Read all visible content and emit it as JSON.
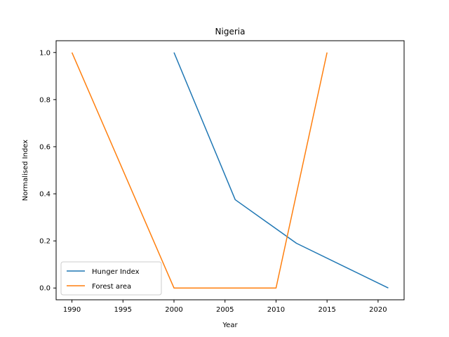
{
  "chart_data": {
    "type": "line",
    "title": "Nigeria",
    "xlabel": "Year",
    "ylabel": "Normalised Index",
    "xlim": [
      1988.45,
      2022.55
    ],
    "ylim": [
      -0.05,
      1.05
    ],
    "x_ticks": [
      1990,
      1995,
      2000,
      2005,
      2010,
      2015,
      2020
    ],
    "y_ticks": [
      0.0,
      0.2,
      0.4,
      0.6,
      0.8,
      1.0
    ],
    "y_tick_labels": [
      "0.0",
      "0.2",
      "0.4",
      "0.6",
      "0.8",
      "1.0"
    ],
    "grid": false,
    "legend_position": "lower-left",
    "series": [
      {
        "name": "Hunger Index",
        "color": "#1f77b4",
        "x": [
          2000,
          2006,
          2012,
          2021
        ],
        "y": [
          1.0,
          0.375,
          0.19,
          0.0
        ]
      },
      {
        "name": "Forest area",
        "color": "#ff7f0e",
        "x": [
          1990,
          2000,
          2005,
          2010,
          2015
        ],
        "y": [
          1.0,
          0.0,
          0.0,
          0.0,
          1.0
        ]
      }
    ]
  }
}
